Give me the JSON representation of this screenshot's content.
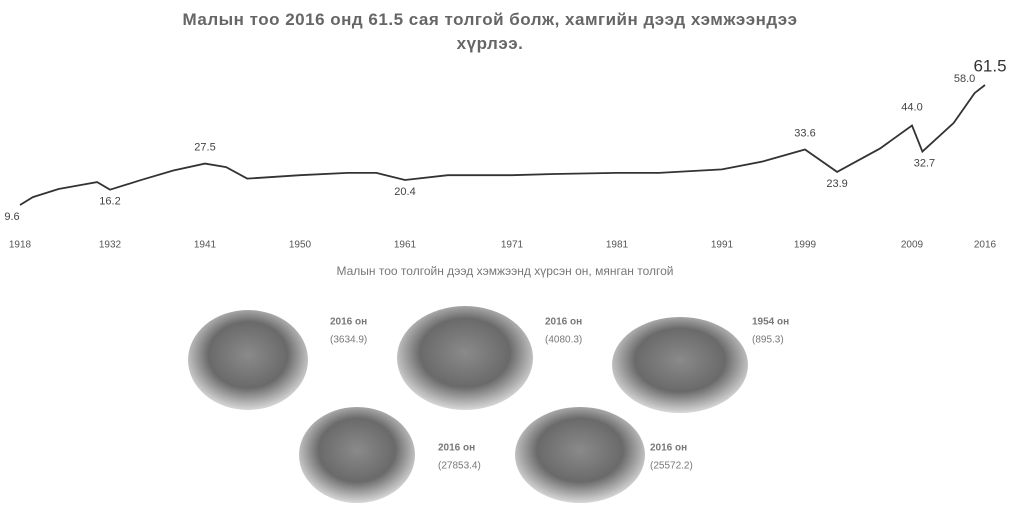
{
  "chart_data": {
    "type": "line",
    "title": "Малын тоо 2016 онд 61.5 сая толгой болж, хамгийн дээд хэмжээндээ хүрлээ.",
    "x": [
      1918,
      1920,
      1924,
      1928,
      1930,
      1932,
      1935,
      1938,
      1941,
      1943,
      1945,
      1950,
      1955,
      1958,
      1961,
      1965,
      1971,
      1975,
      1981,
      1985,
      1991,
      1995,
      1999,
      2002,
      2006,
      2009,
      2010,
      2013,
      2015,
      2016
    ],
    "xticks": [
      1918,
      1932,
      1941,
      1950,
      1961,
      1971,
      1981,
      1991,
      1999,
      2009,
      2016
    ],
    "series": [
      {
        "color": "#333333",
        "values": [
          9.6,
          13,
          16.5,
          18.5,
          19.5,
          16.2,
          20.5,
          24.5,
          27.5,
          26,
          21,
          22.5,
          23.5,
          23.5,
          20.4,
          22.5,
          22.5,
          23,
          23.5,
          23.5,
          25,
          28.5,
          33.6,
          23.9,
          34,
          44.0,
          32.7,
          45.1,
          58.0,
          61.5
        ],
        "value_labels": [
          "9.6",
          null,
          null,
          null,
          null,
          "16.2",
          null,
          null,
          "27.5",
          null,
          null,
          null,
          null,
          null,
          "20.4",
          null,
          null,
          null,
          null,
          null,
          null,
          null,
          "33.6",
          "23.9",
          null,
          "44.0",
          "32.7",
          null,
          "58.0",
          "61.5"
        ]
      }
    ]
  },
  "gallery": {
    "title": "Малын тоо толгойн дээд хэмжээнд хүрсэн он, мянган толгой",
    "items": [
      {
        "year": "2016 он",
        "value": "(3634.9)"
      },
      {
        "year": "2016 он",
        "value": "(4080.3)"
      },
      {
        "year": "1954 он",
        "value": "(895.3)"
      },
      {
        "year": "2016 он",
        "value": "(27853.4)"
      },
      {
        "year": "2016 он",
        "value": "(25572.2)"
      }
    ]
  }
}
